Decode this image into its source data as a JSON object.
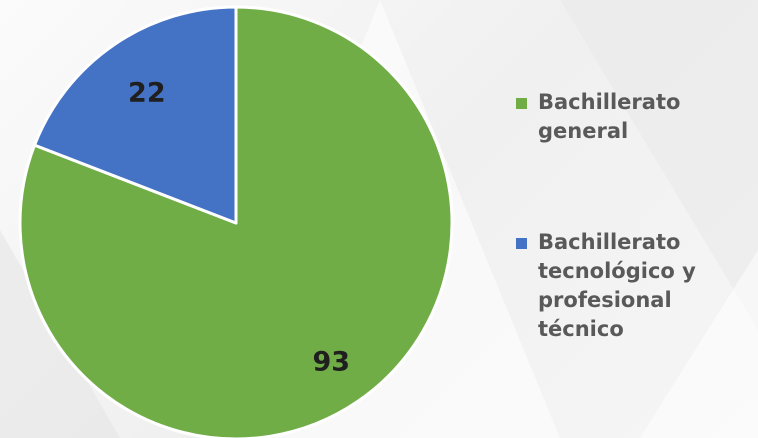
{
  "chart_data": {
    "type": "pie",
    "series": [
      {
        "name": "Bachillerato general",
        "value": 93,
        "color": "#70ad47"
      },
      {
        "name": "Bachillerato tecnológico y profesional técnico",
        "value": 22,
        "color": "#4472c4"
      }
    ],
    "data_labels": [
      "93",
      "22"
    ],
    "legend": {
      "position": "right",
      "items": [
        {
          "label": "Bachillerato general",
          "color": "#70ad47"
        },
        {
          "label": "Bachillerato tecnológico y profesional técnico",
          "color": "#4472c4"
        }
      ]
    }
  }
}
